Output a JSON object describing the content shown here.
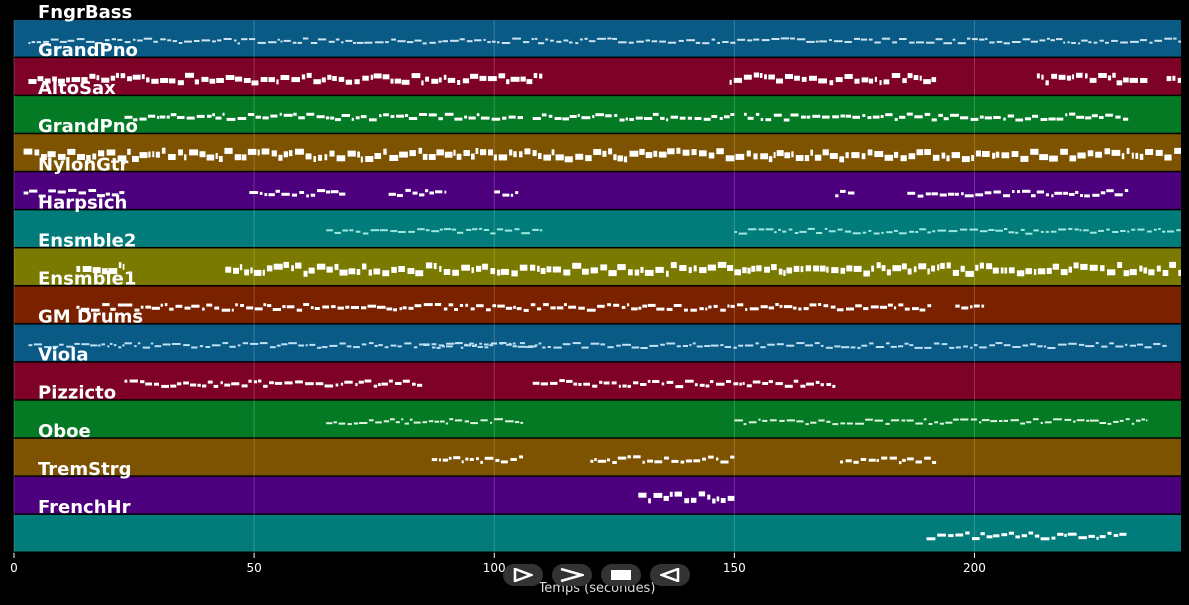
{
  "chart_data": {
    "type": "piano-roll",
    "xlabel": "Temps (secondes)",
    "xlim": [
      0,
      243
    ],
    "xticks": [
      0,
      50,
      100,
      150,
      200
    ],
    "grid": true,
    "tracks": [
      {
        "name": "FngrBass",
        "color": "#0a5a86",
        "note": "#d0e4f0",
        "thick": 2,
        "segments": [
          [
            3,
            243
          ]
        ]
      },
      {
        "name": "GrandPno",
        "color": "#7e0128",
        "note": "#ffffff",
        "thick": 5,
        "segments": [
          [
            3,
            110
          ],
          [
            149,
            192
          ],
          [
            213,
            236
          ],
          [
            240,
            243
          ]
        ]
      },
      {
        "name": "AltoSax",
        "color": "#047a25",
        "note": "#ffffff",
        "thick": 3,
        "segments": [
          [
            23,
            106
          ],
          [
            108,
            150
          ],
          [
            152,
            232
          ]
        ]
      },
      {
        "name": "GrandPno",
        "color": "#7d5200",
        "note": "#ffffff",
        "thick": 6,
        "segments": [
          [
            2,
            243
          ]
        ]
      },
      {
        "name": "NylonGtr",
        "color": "#4c007e",
        "note": "#ffffff",
        "thick": 3,
        "segments": [
          [
            2,
            23
          ],
          [
            49,
            69
          ],
          [
            78,
            90
          ],
          [
            100,
            105
          ],
          [
            171,
            175
          ],
          [
            186,
            232
          ]
        ]
      },
      {
        "name": "Harpsich",
        "color": "#017c7a",
        "note": "#9fe8e0",
        "thick": 2,
        "segments": [
          [
            65,
            110
          ],
          [
            150,
            243
          ]
        ]
      },
      {
        "name": "Ensmble2",
        "color": "#7a7a00",
        "note": "#ffffff",
        "thick": 6,
        "segments": [
          [
            13,
            23
          ],
          [
            44,
            243
          ]
        ]
      },
      {
        "name": "Ensmble1",
        "color": "#7a2200",
        "note": "#ffffff",
        "thick": 3,
        "segments": [
          [
            13,
            23
          ],
          [
            23,
            191
          ],
          [
            196,
            202
          ]
        ]
      },
      {
        "name": "GM Drums",
        "color": "#0a5a86",
        "note": "#bde0f5",
        "thick": 2,
        "segments": [
          [
            3,
            23
          ],
          [
            23,
            240
          ],
          [
            85,
            109
          ]
        ]
      },
      {
        "name": "Viola",
        "color": "#7e0128",
        "note": "#ffffff",
        "thick": 3,
        "segments": [
          [
            23,
            85
          ],
          [
            108,
            171
          ]
        ]
      },
      {
        "name": "Pizzicto",
        "color": "#047a25",
        "note": "#dff5e0",
        "thick": 2,
        "segments": [
          [
            65,
            106
          ],
          [
            150,
            236
          ]
        ]
      },
      {
        "name": "Oboe",
        "color": "#7d5200",
        "note": "#ffffff",
        "thick": 3,
        "segments": [
          [
            87,
            106
          ],
          [
            120,
            150
          ],
          [
            172,
            192
          ]
        ]
      },
      {
        "name": "TremStrg",
        "color": "#4c007e",
        "note": "#ffffff",
        "thick": 5,
        "segments": [
          [
            130,
            150
          ]
        ]
      },
      {
        "name": "FrenchHr",
        "color": "#017c7a",
        "note": "#ffffff",
        "thick": 3,
        "segments": [
          [
            190,
            232
          ]
        ]
      }
    ]
  },
  "controls": [
    {
      "name": "play-button",
      "icon": "play-icon"
    },
    {
      "name": "forward-button",
      "icon": "chevron-right-icon"
    },
    {
      "name": "stop-button",
      "icon": "stop-icon"
    },
    {
      "name": "rewind-button",
      "icon": "rewind-icon"
    }
  ]
}
